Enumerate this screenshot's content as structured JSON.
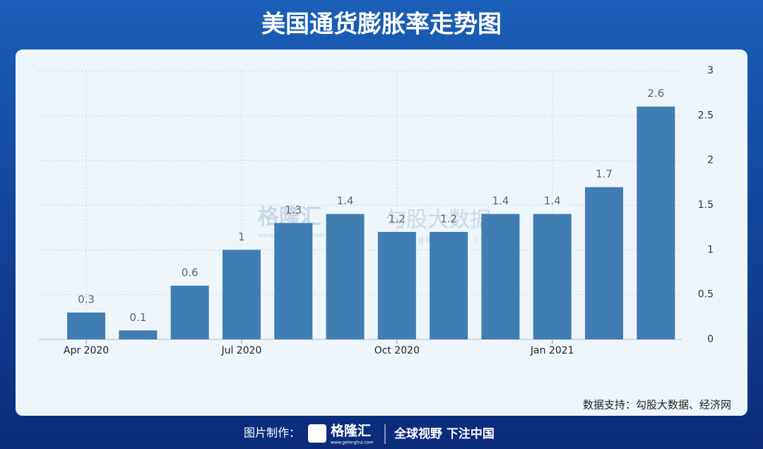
{
  "chart_data": {
    "type": "bar",
    "title": "美国通货膨胀率走势图",
    "categories": [
      "Apr 2020",
      null,
      null,
      "Jul 2020",
      null,
      null,
      "Oct 2020",
      null,
      null,
      "Jan 2021",
      null,
      null
    ],
    "values": [
      0.3,
      0.1,
      0.6,
      1,
      1.3,
      1.4,
      1.2,
      1.2,
      1.4,
      1.4,
      1.7,
      2.6
    ],
    "color": "#3f7db3",
    "ylim": [
      0,
      3
    ],
    "yticks": [
      0,
      0.5,
      1,
      1.5,
      2,
      2.5,
      3
    ],
    "grid": true,
    "y_axis_side": "right",
    "source": "数据支持：勾股大数据、经济网"
  },
  "watermark": {
    "left": "格隆汇",
    "left_url": "www.gogonghui.com",
    "right": "勾股大数据",
    "right_url": "www.gogudata.com"
  },
  "footer": {
    "label": "图片制作：",
    "brand": "格隆汇",
    "brand_url": "www.gelonghui.com",
    "slogan": "全球视野 下注中国"
  }
}
